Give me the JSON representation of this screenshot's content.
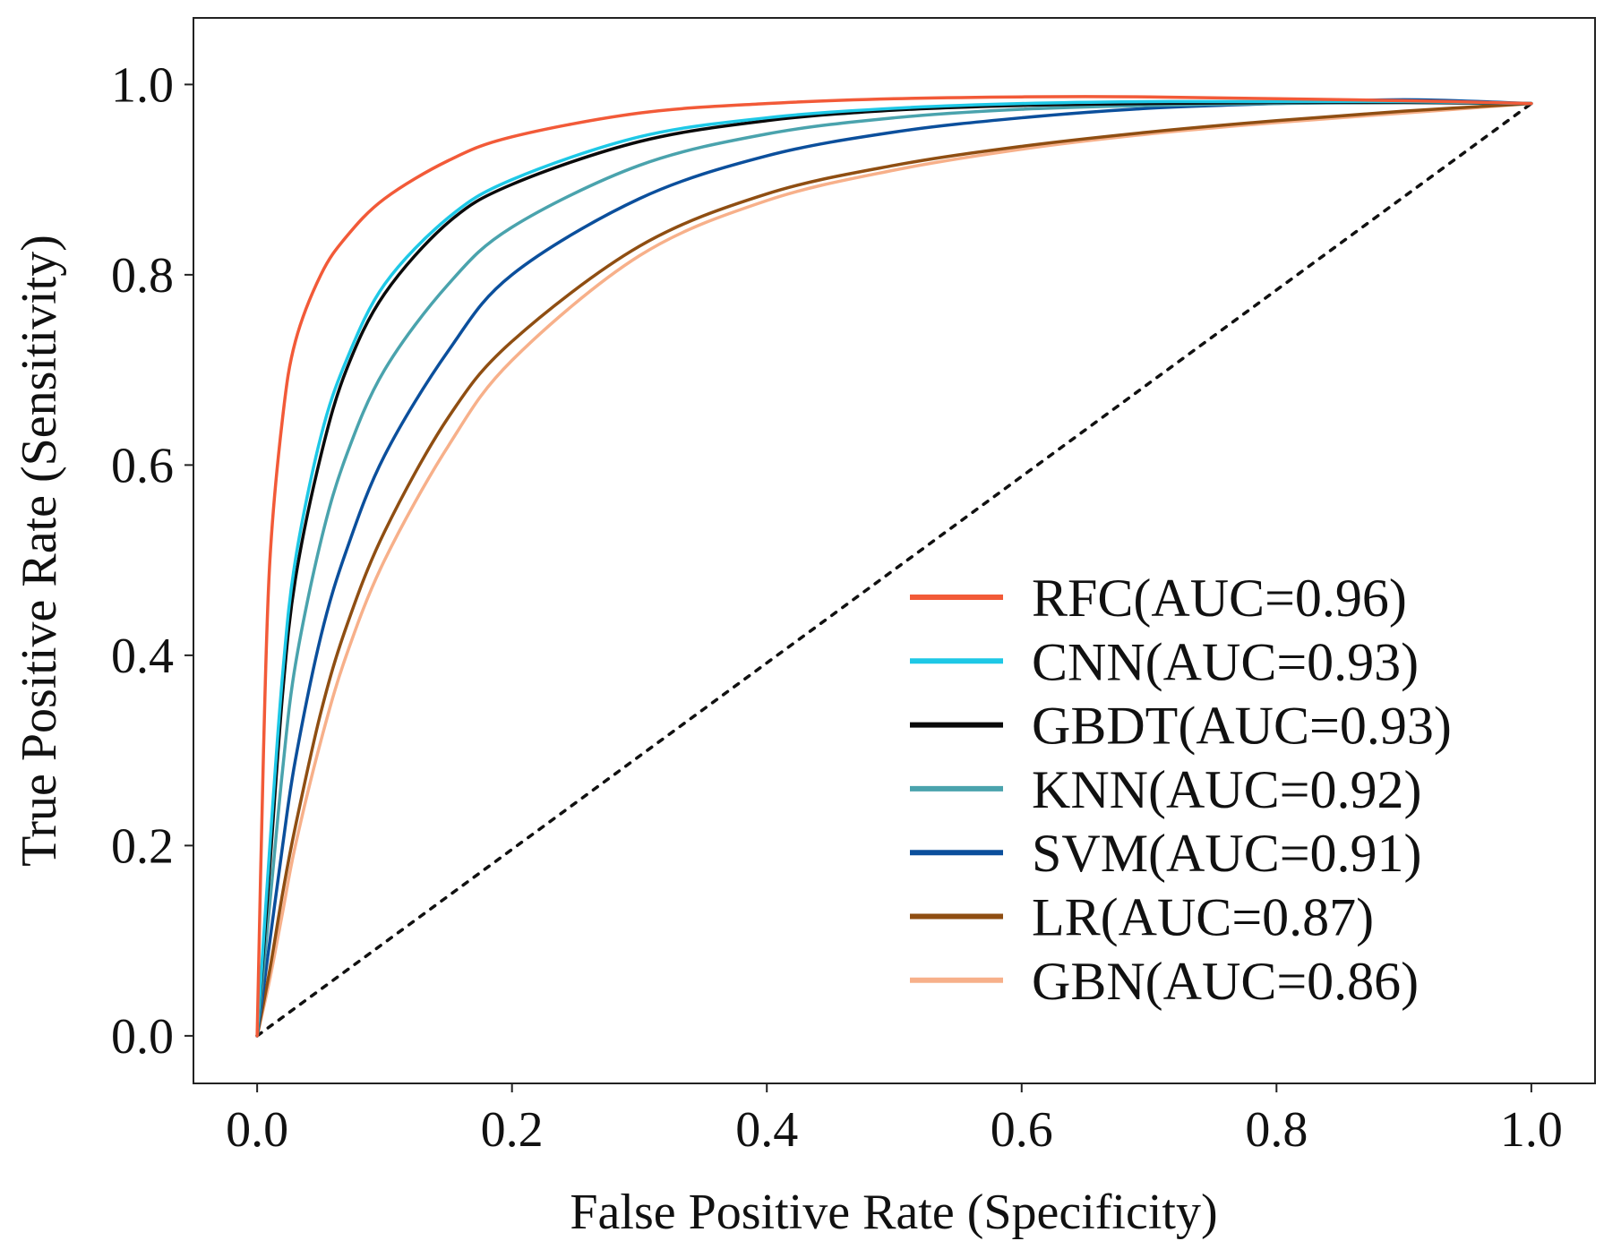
{
  "chart_data": {
    "type": "line",
    "title": "",
    "xlabel": "False Positive Rate (Specificity)",
    "ylabel": "True Positive Rate (Sensitivity)",
    "xlim": [
      -0.05,
      1.05
    ],
    "ylim": [
      -0.05,
      1.07
    ],
    "xticks": [
      0.0,
      0.2,
      0.4,
      0.6,
      0.8,
      1.0
    ],
    "xtick_labels": [
      "0.0",
      "0.2",
      "0.4",
      "0.6",
      "0.8",
      "1.0"
    ],
    "yticks": [
      0.0,
      0.2,
      0.4,
      0.6,
      0.8,
      1.0
    ],
    "ytick_labels": [
      "0.0",
      "0.2",
      "0.4",
      "0.6",
      "0.8",
      "1.0"
    ],
    "grid": false,
    "legend_position": "bottom-right",
    "reference_line": {
      "name": "chance",
      "style": "dotted",
      "color": "#111111",
      "x": [
        0.0,
        1.0
      ],
      "y": [
        0.0,
        0.98
      ]
    },
    "series": [
      {
        "name": "RFC(AUC=0.96)",
        "color": "#f25a38",
        "x": [
          0.0,
          0.005,
          0.01,
          0.02,
          0.03,
          0.05,
          0.07,
          0.1,
          0.15,
          0.2,
          0.3,
          0.4,
          0.5,
          0.6,
          0.7,
          0.8,
          0.9,
          1.0
        ],
        "y": [
          0.0,
          0.3,
          0.5,
          0.65,
          0.73,
          0.8,
          0.84,
          0.88,
          0.92,
          0.945,
          0.97,
          0.98,
          0.985,
          0.987,
          0.987,
          0.985,
          0.983,
          0.98
        ]
      },
      {
        "name": "CNN(AUC=0.93)",
        "color": "#1ec8e6",
        "x": [
          0.0,
          0.01,
          0.02,
          0.03,
          0.05,
          0.07,
          0.1,
          0.15,
          0.2,
          0.3,
          0.4,
          0.5,
          0.6,
          0.7,
          0.8,
          0.9,
          1.0
        ],
        "y": [
          0.0,
          0.2,
          0.38,
          0.5,
          0.63,
          0.71,
          0.79,
          0.86,
          0.9,
          0.945,
          0.965,
          0.975,
          0.98,
          0.982,
          0.982,
          0.982,
          0.98
        ]
      },
      {
        "name": "GBDT(AUC=0.93)",
        "color": "#0a0a0a",
        "x": [
          0.0,
          0.01,
          0.02,
          0.03,
          0.05,
          0.07,
          0.1,
          0.15,
          0.2,
          0.3,
          0.4,
          0.5,
          0.6,
          0.7,
          0.8,
          0.9,
          1.0
        ],
        "y": [
          0.0,
          0.18,
          0.36,
          0.48,
          0.61,
          0.7,
          0.78,
          0.855,
          0.895,
          0.94,
          0.962,
          0.973,
          0.978,
          0.98,
          0.981,
          0.981,
          0.98
        ]
      },
      {
        "name": "KNN(AUC=0.92)",
        "color": "#4aa3ad",
        "x": [
          0.0,
          0.01,
          0.02,
          0.03,
          0.05,
          0.07,
          0.1,
          0.15,
          0.2,
          0.3,
          0.4,
          0.5,
          0.6,
          0.7,
          0.8,
          0.9,
          1.0
        ],
        "y": [
          0.0,
          0.14,
          0.28,
          0.39,
          0.52,
          0.61,
          0.7,
          0.79,
          0.85,
          0.915,
          0.948,
          0.965,
          0.974,
          0.978,
          0.98,
          0.981,
          0.98
        ]
      },
      {
        "name": "SVM(AUC=0.91)",
        "color": "#0b4f9c",
        "x": [
          0.0,
          0.01,
          0.02,
          0.03,
          0.05,
          0.07,
          0.1,
          0.15,
          0.2,
          0.3,
          0.4,
          0.5,
          0.6,
          0.7,
          0.8,
          0.9,
          1.0
        ],
        "y": [
          0.0,
          0.1,
          0.2,
          0.29,
          0.42,
          0.51,
          0.61,
          0.72,
          0.8,
          0.88,
          0.925,
          0.95,
          0.965,
          0.975,
          0.98,
          0.984,
          0.98
        ]
      },
      {
        "name": "LR(AUC=0.87)",
        "color": "#8f4e12",
        "x": [
          0.0,
          0.01,
          0.02,
          0.03,
          0.05,
          0.07,
          0.1,
          0.15,
          0.2,
          0.3,
          0.4,
          0.5,
          0.6,
          0.7,
          0.8,
          0.9,
          1.0
        ],
        "y": [
          0.0,
          0.07,
          0.15,
          0.22,
          0.34,
          0.43,
          0.53,
          0.65,
          0.73,
          0.83,
          0.885,
          0.915,
          0.935,
          0.95,
          0.962,
          0.972,
          0.98
        ]
      },
      {
        "name": "GBN(AUC=0.86)",
        "color": "#f7b08a",
        "x": [
          0.0,
          0.01,
          0.02,
          0.03,
          0.05,
          0.07,
          0.1,
          0.15,
          0.2,
          0.3,
          0.4,
          0.5,
          0.6,
          0.7,
          0.8,
          0.9,
          1.0
        ],
        "y": [
          0.0,
          0.06,
          0.13,
          0.2,
          0.31,
          0.4,
          0.5,
          0.62,
          0.71,
          0.82,
          0.878,
          0.91,
          0.932,
          0.948,
          0.96,
          0.97,
          0.98
        ]
      }
    ]
  }
}
